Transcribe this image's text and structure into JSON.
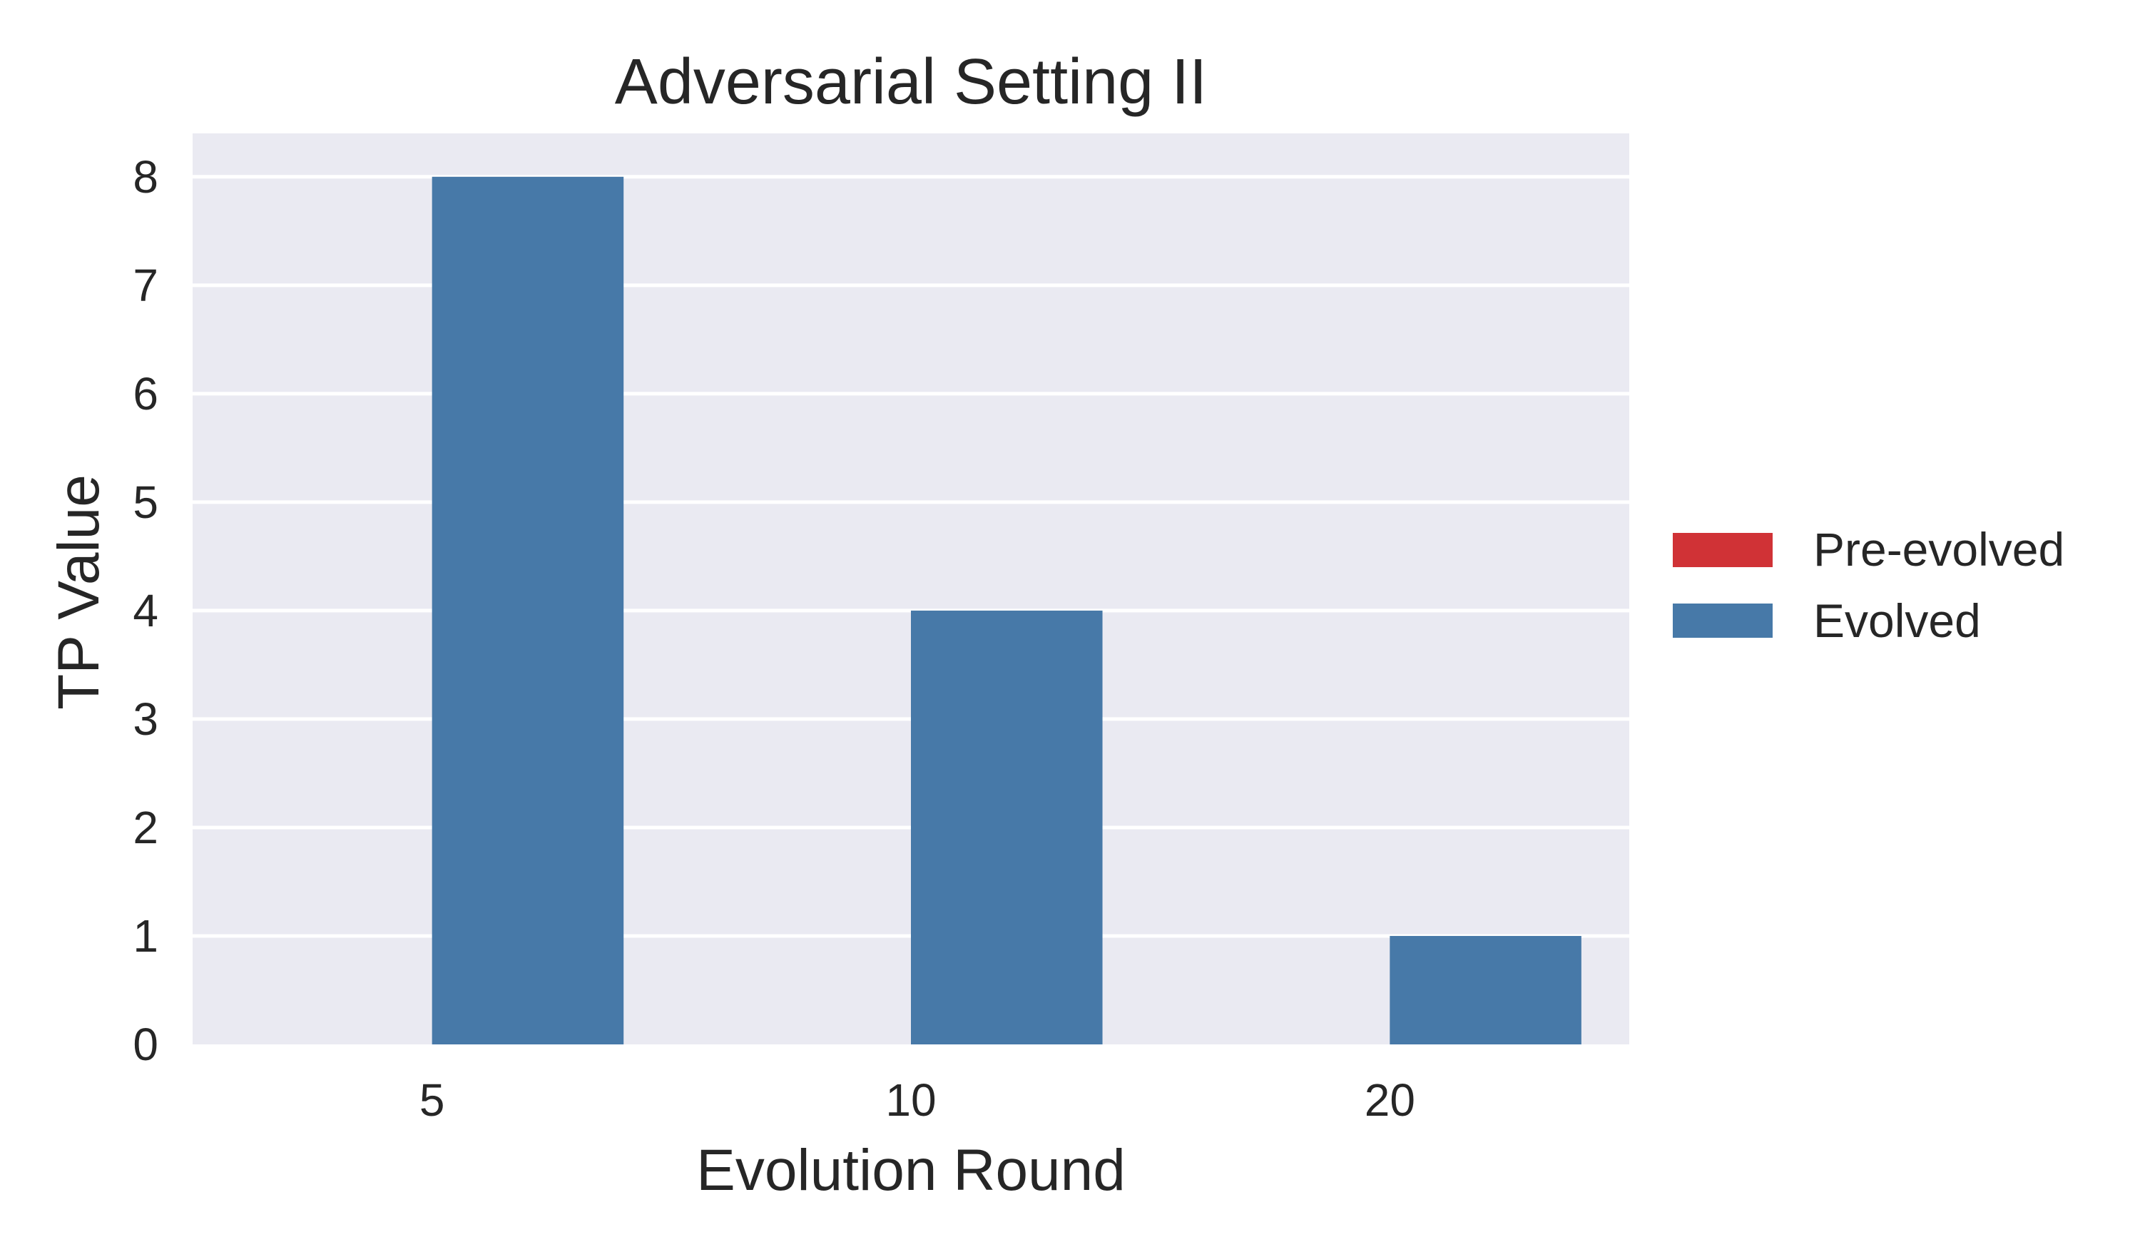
{
  "chart_data": {
    "type": "bar",
    "title": "Adversarial Setting II",
    "xlabel": "Evolution Round",
    "ylabel": "TP Value",
    "categories": [
      "5",
      "10",
      "20"
    ],
    "series": [
      {
        "name": "Pre-evolved",
        "color": "#d03236",
        "values": [
          0,
          0,
          0
        ]
      },
      {
        "name": "Evolved",
        "color": "#4779a8",
        "values": [
          8,
          4,
          1
        ]
      }
    ],
    "ylim": [
      0,
      8.4
    ],
    "yticks": [
      "0",
      "1",
      "2",
      "3",
      "4",
      "5",
      "6",
      "7",
      "8"
    ],
    "grid": true,
    "legend_position": "right",
    "colors": {
      "plot_background": "#eaeaf2",
      "grid": "#ffffff",
      "text": "#262626"
    }
  }
}
